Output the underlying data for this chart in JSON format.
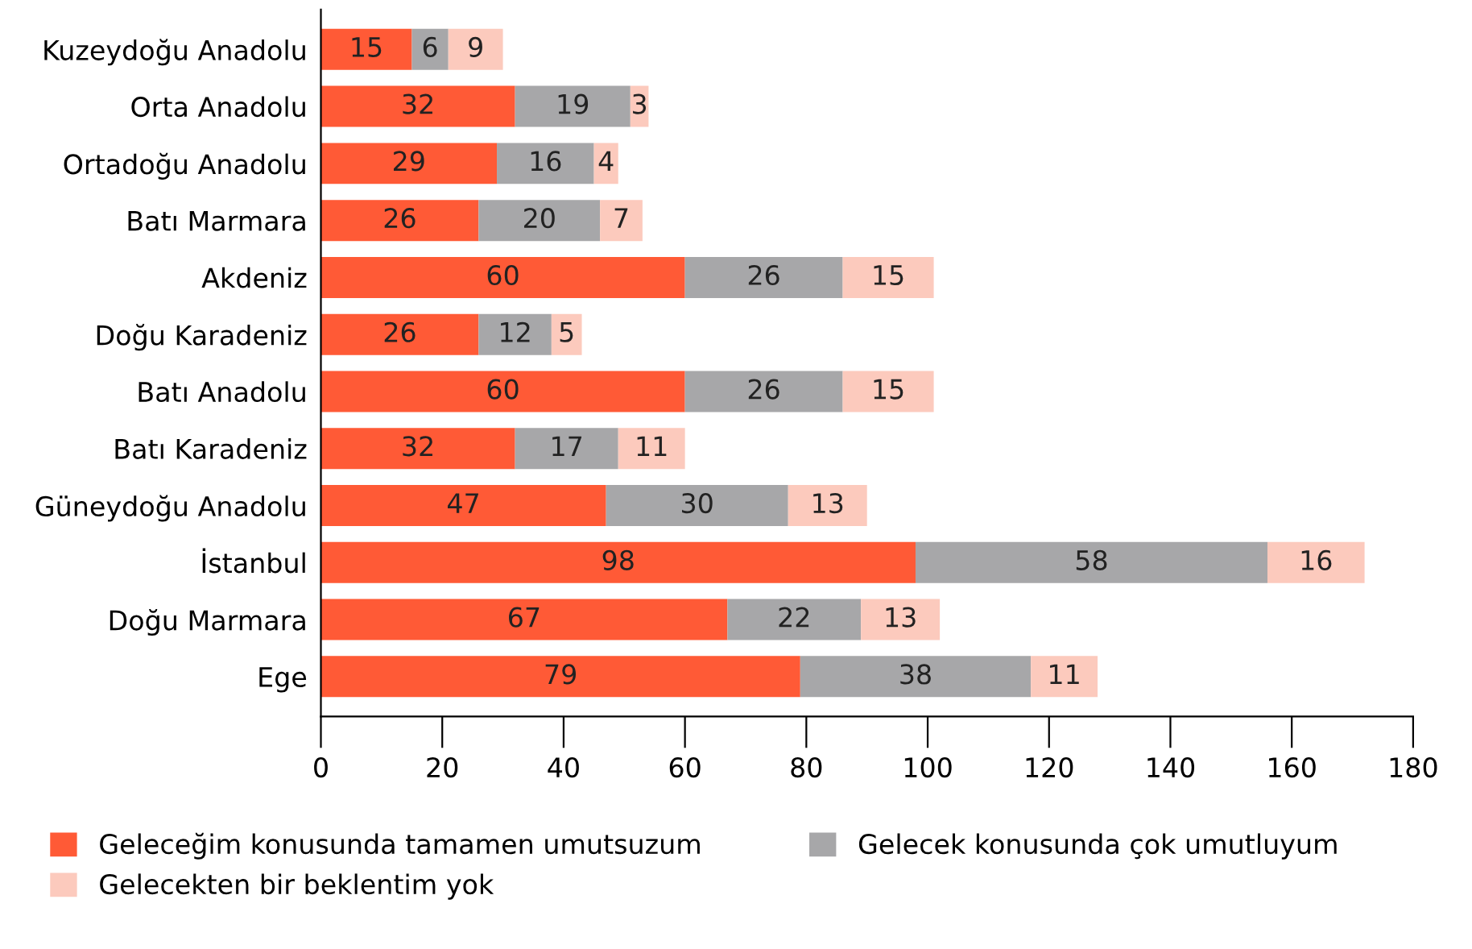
{
  "chart_data": {
    "type": "bar",
    "orientation": "horizontal",
    "stacked": true,
    "data_labels": true,
    "legend": "bottom",
    "grid": false,
    "categories": [
      "Kuzeydoğu Anadolu",
      "Orta Anadolu",
      "Ortadoğu Anadolu",
      "Batı Marmara",
      "Akdeniz",
      "Doğu Karadeniz",
      "Batı Anadolu",
      "Batı Karadeniz",
      "Güneydoğu Anadolu",
      "İstanbul",
      "Doğu Marmara",
      "Ege"
    ],
    "series": [
      {
        "name": "Geleceğim konusunda tamamen umutsuzum",
        "color": "#ff5a36",
        "values": [
          15,
          32,
          29,
          26,
          60,
          26,
          60,
          32,
          47,
          98,
          67,
          79
        ]
      },
      {
        "name": "Gelecek konusunda çok umutluyum",
        "color": "#a7a7a9",
        "values": [
          6,
          19,
          16,
          20,
          26,
          12,
          26,
          17,
          30,
          58,
          22,
          38
        ]
      },
      {
        "name": "Gelecekten bir beklentim yok",
        "color": "#fccabd",
        "values": [
          9,
          3,
          4,
          7,
          15,
          5,
          15,
          11,
          13,
          16,
          13,
          11
        ]
      }
    ],
    "xlim": [
      0,
      180
    ],
    "xticks": [
      0,
      20,
      40,
      60,
      80,
      100,
      120,
      140,
      160,
      180
    ]
  }
}
